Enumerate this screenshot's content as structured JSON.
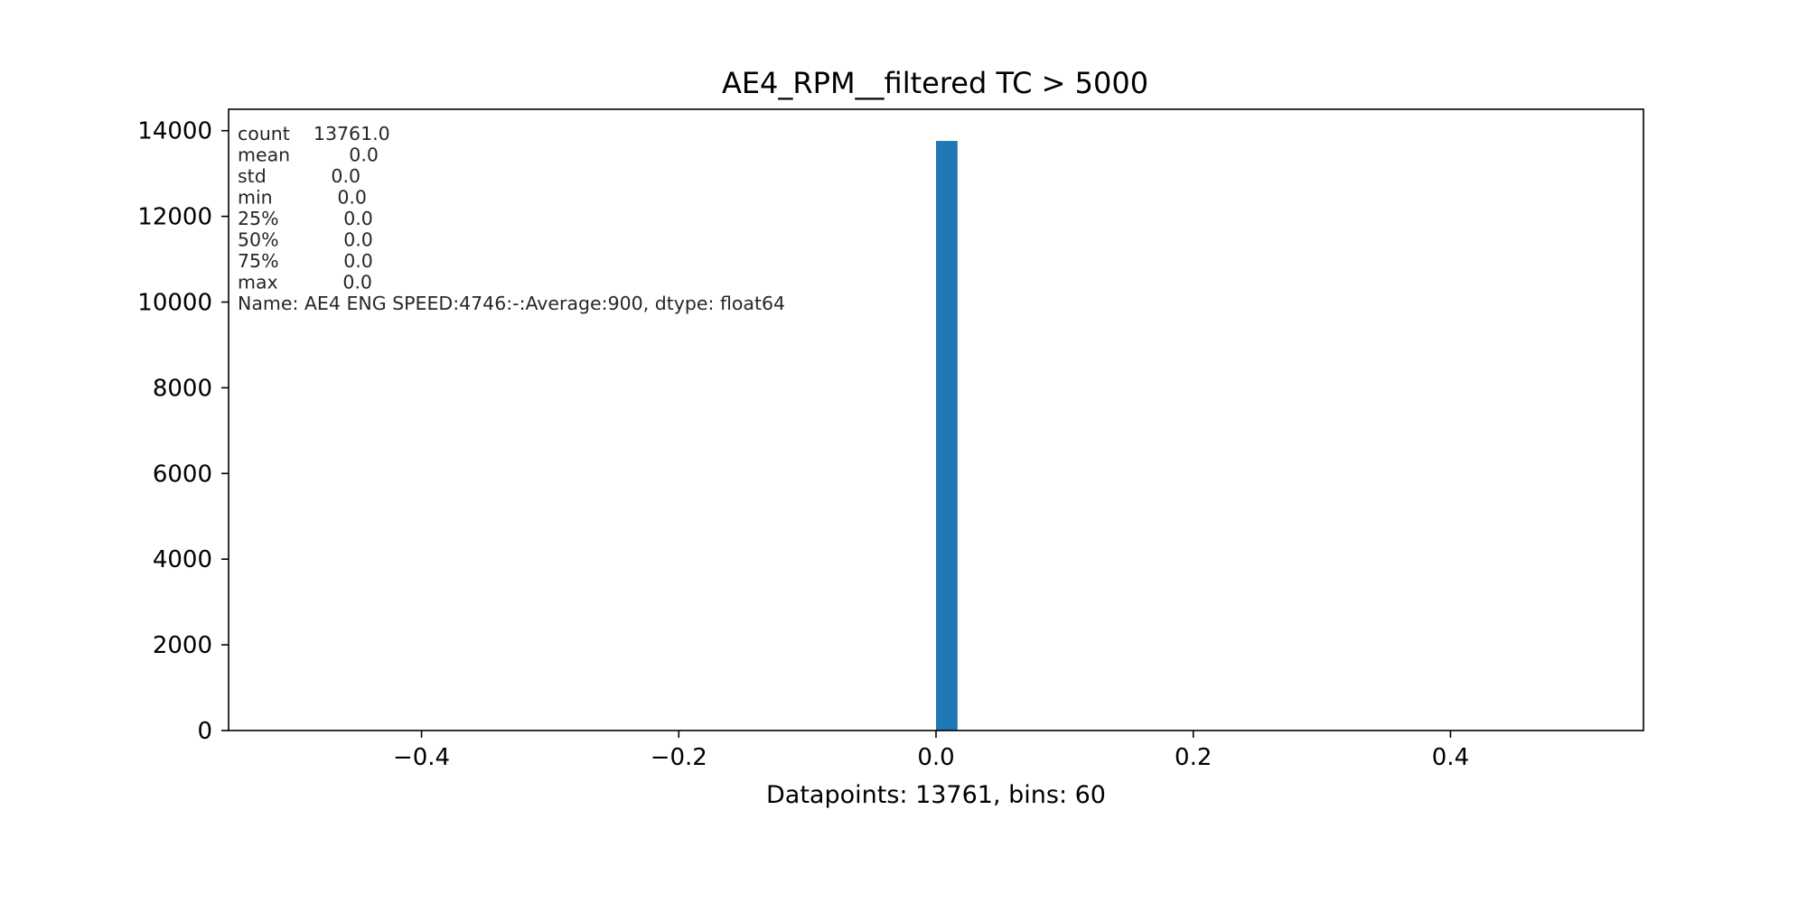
{
  "chart_data": {
    "type": "bar",
    "title": "AE4_RPM__filtered TC > 5000",
    "xlabel": "Datapoints: 13761, bins: 60",
    "ylabel": "",
    "xlim": [
      -0.55,
      0.55
    ],
    "ylim": [
      0,
      14500
    ],
    "xticks": [
      {
        "value": -0.4,
        "label": "−0.4"
      },
      {
        "value": -0.2,
        "label": "−0.2"
      },
      {
        "value": 0.0,
        "label": "0.0"
      },
      {
        "value": 0.2,
        "label": "0.2"
      },
      {
        "value": 0.4,
        "label": "0.4"
      }
    ],
    "yticks": [
      {
        "value": 0,
        "label": "0"
      },
      {
        "value": 2000,
        "label": "2000"
      },
      {
        "value": 4000,
        "label": "4000"
      },
      {
        "value": 6000,
        "label": "6000"
      },
      {
        "value": 8000,
        "label": "8000"
      },
      {
        "value": 10000,
        "label": "10000"
      },
      {
        "value": 12000,
        "label": "12000"
      },
      {
        "value": 14000,
        "label": "14000"
      }
    ],
    "bars": [
      {
        "x0": 0.0,
        "x1": 0.0167,
        "value": 13761
      }
    ],
    "bar_color": "#1f77b4",
    "grid": false,
    "annotation_lines": [
      "count    13761.0",
      "mean          0.0",
      "std           0.0",
      "min           0.0",
      "25%           0.0",
      "50%           0.0",
      "75%           0.0",
      "max           0.0",
      "Name: AE4 ENG SPEED:4746:-:Average:900, dtype: float64"
    ]
  }
}
